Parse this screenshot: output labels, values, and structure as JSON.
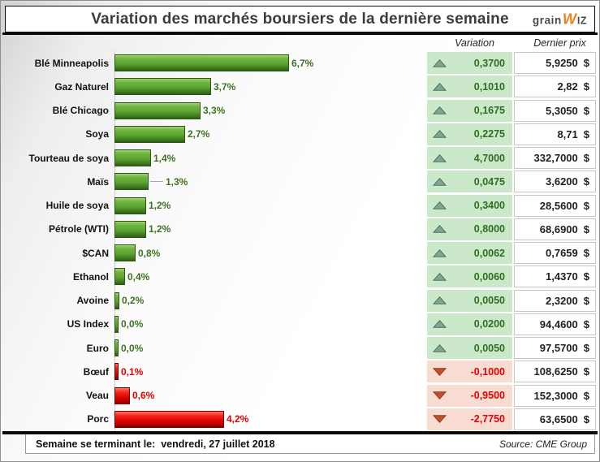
{
  "title": "Variation des marchés boursiers de la dernière semaine",
  "logo": {
    "grain": "grain",
    "w": "W",
    "iz": "IZ"
  },
  "columns": {
    "variation": "Variation",
    "last_price": "Dernier prix"
  },
  "currency": "$",
  "footer": {
    "week_label": "Semaine se terminant le:  vendredi, 27 juillet 2018",
    "source": "Source: CME Group"
  },
  "colors": {
    "bar_positive": "#5CA332",
    "bar_negative": "#E30505",
    "variation_positive_bg": "#CBE8CA",
    "variation_negative_bg": "#F9DCD1",
    "variation_positive_text": "#2F6E1F",
    "variation_negative_text": "#E50000",
    "up_arrow": "#7FA893",
    "down_arrow": "#C0532F",
    "logo_orange": "#E8821E"
  },
  "chart_data": {
    "type": "bar",
    "orientation": "horizontal",
    "value_format": "percent_weekly_change",
    "xlim": [
      0,
      7
    ],
    "grid": false,
    "rows": [
      {
        "label": "Blé Minneapolis",
        "pct": 6.7,
        "pct_label": "6,7%",
        "direction": "up",
        "variation": "0,3700",
        "price": "5,9250"
      },
      {
        "label": "Gaz Naturel",
        "pct": 3.7,
        "pct_label": "3,7%",
        "direction": "up",
        "variation": "0,1010",
        "price": "2,82"
      },
      {
        "label": "Blé Chicago",
        "pct": 3.3,
        "pct_label": "3,3%",
        "direction": "up",
        "variation": "0,1675",
        "price": "5,3050"
      },
      {
        "label": "Soya",
        "pct": 2.7,
        "pct_label": "2,7%",
        "direction": "up",
        "variation": "0,2275",
        "price": "8,71"
      },
      {
        "label": "Tourteau de soya",
        "pct": 1.4,
        "pct_label": "1,4%",
        "direction": "up",
        "variation": "4,7000",
        "price": "332,7000"
      },
      {
        "label": "Maïs",
        "pct": 1.3,
        "pct_label": "1,3%",
        "direction": "up",
        "variation": "0,0475",
        "price": "3,6200",
        "leader": true
      },
      {
        "label": "Huile de soya",
        "pct": 1.2,
        "pct_label": "1,2%",
        "direction": "up",
        "variation": "0,3400",
        "price": "28,5600"
      },
      {
        "label": "Pétrole (WTI)",
        "pct": 1.2,
        "pct_label": "1,2%",
        "direction": "up",
        "variation": "0,8000",
        "price": "68,6900"
      },
      {
        "label": "$CAN",
        "pct": 0.8,
        "pct_label": "0,8%",
        "direction": "up",
        "variation": "0,0062",
        "price": "0,7659"
      },
      {
        "label": "Ethanol",
        "pct": 0.4,
        "pct_label": "0,4%",
        "direction": "up",
        "variation": "0,0060",
        "price": "1,4370"
      },
      {
        "label": "Avoine",
        "pct": 0.2,
        "pct_label": "0,2%",
        "direction": "up",
        "variation": "0,0050",
        "price": "2,3200"
      },
      {
        "label": "US Index",
        "pct": 0.0,
        "pct_label": "0,0%",
        "direction": "up",
        "variation": "0,0200",
        "price": "94,4600"
      },
      {
        "label": "Euro",
        "pct": 0.0,
        "pct_label": "0,0%",
        "direction": "up",
        "variation": "0,0050",
        "price": "97,5700"
      },
      {
        "label": "Bœuf",
        "pct": 0.1,
        "pct_label": "0,1%",
        "direction": "down",
        "variation": "-0,1000",
        "price": "108,6250"
      },
      {
        "label": "Veau",
        "pct": 0.6,
        "pct_label": "0,6%",
        "direction": "down",
        "variation": "-0,9500",
        "price": "152,3000"
      },
      {
        "label": "Porc",
        "pct": 4.2,
        "pct_label": "4,2%",
        "direction": "down",
        "variation": "-2,7750",
        "price": "63,6500"
      }
    ]
  }
}
